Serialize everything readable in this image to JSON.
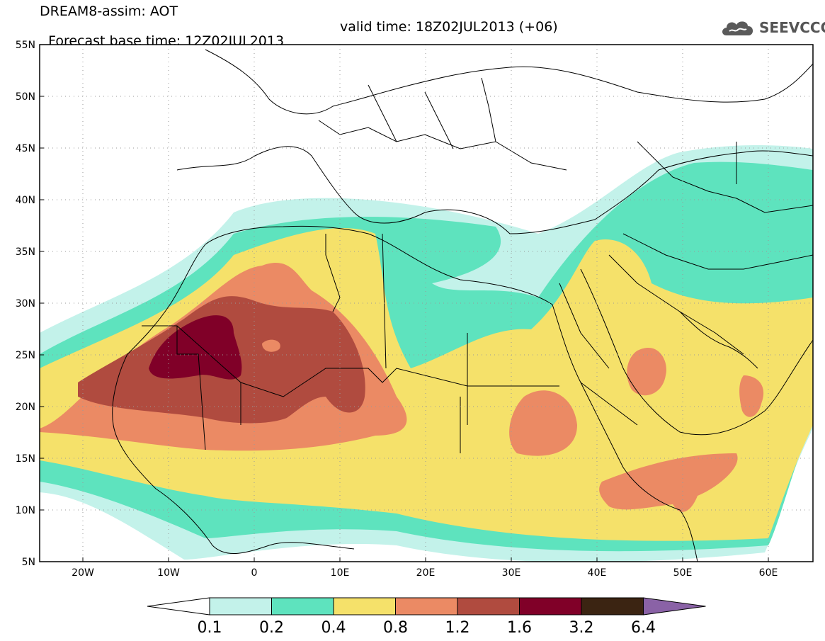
{
  "header": {
    "title_line1": "DREAM8-assim: AOT",
    "base_time": "Forecast base time: 12Z02JUL2013",
    "valid_time": "valid time: 18Z02JUL2013 (+06)",
    "logo_text": "SEEVCCC",
    "logo_icon": "cloud-icon"
  },
  "map": {
    "lon_range": [
      -25,
      65
    ],
    "lat_range": [
      5,
      55
    ],
    "lat_ticks": [
      "55N",
      "50N",
      "45N",
      "40N",
      "35N",
      "30N",
      "25N",
      "20N",
      "15N",
      "10N",
      "5N"
    ],
    "lon_ticks": [
      "20W",
      "10W",
      "0",
      "10E",
      "20E",
      "30E",
      "40E",
      "50E",
      "60E"
    ],
    "grid": "dotted",
    "ocean_color": "#ffffff",
    "border_color": "#000000"
  },
  "colorbar": {
    "levels": [
      "0.1",
      "0.2",
      "0.4",
      "0.8",
      "1.2",
      "1.6",
      "3.2",
      "6.4"
    ],
    "colors": [
      "#ffffff",
      "#c3f2ea",
      "#5ee3be",
      "#f5e16a",
      "#eb8a64",
      "#b04b3f",
      "#800028",
      "#3b2412",
      "#8a62a6"
    ]
  }
}
